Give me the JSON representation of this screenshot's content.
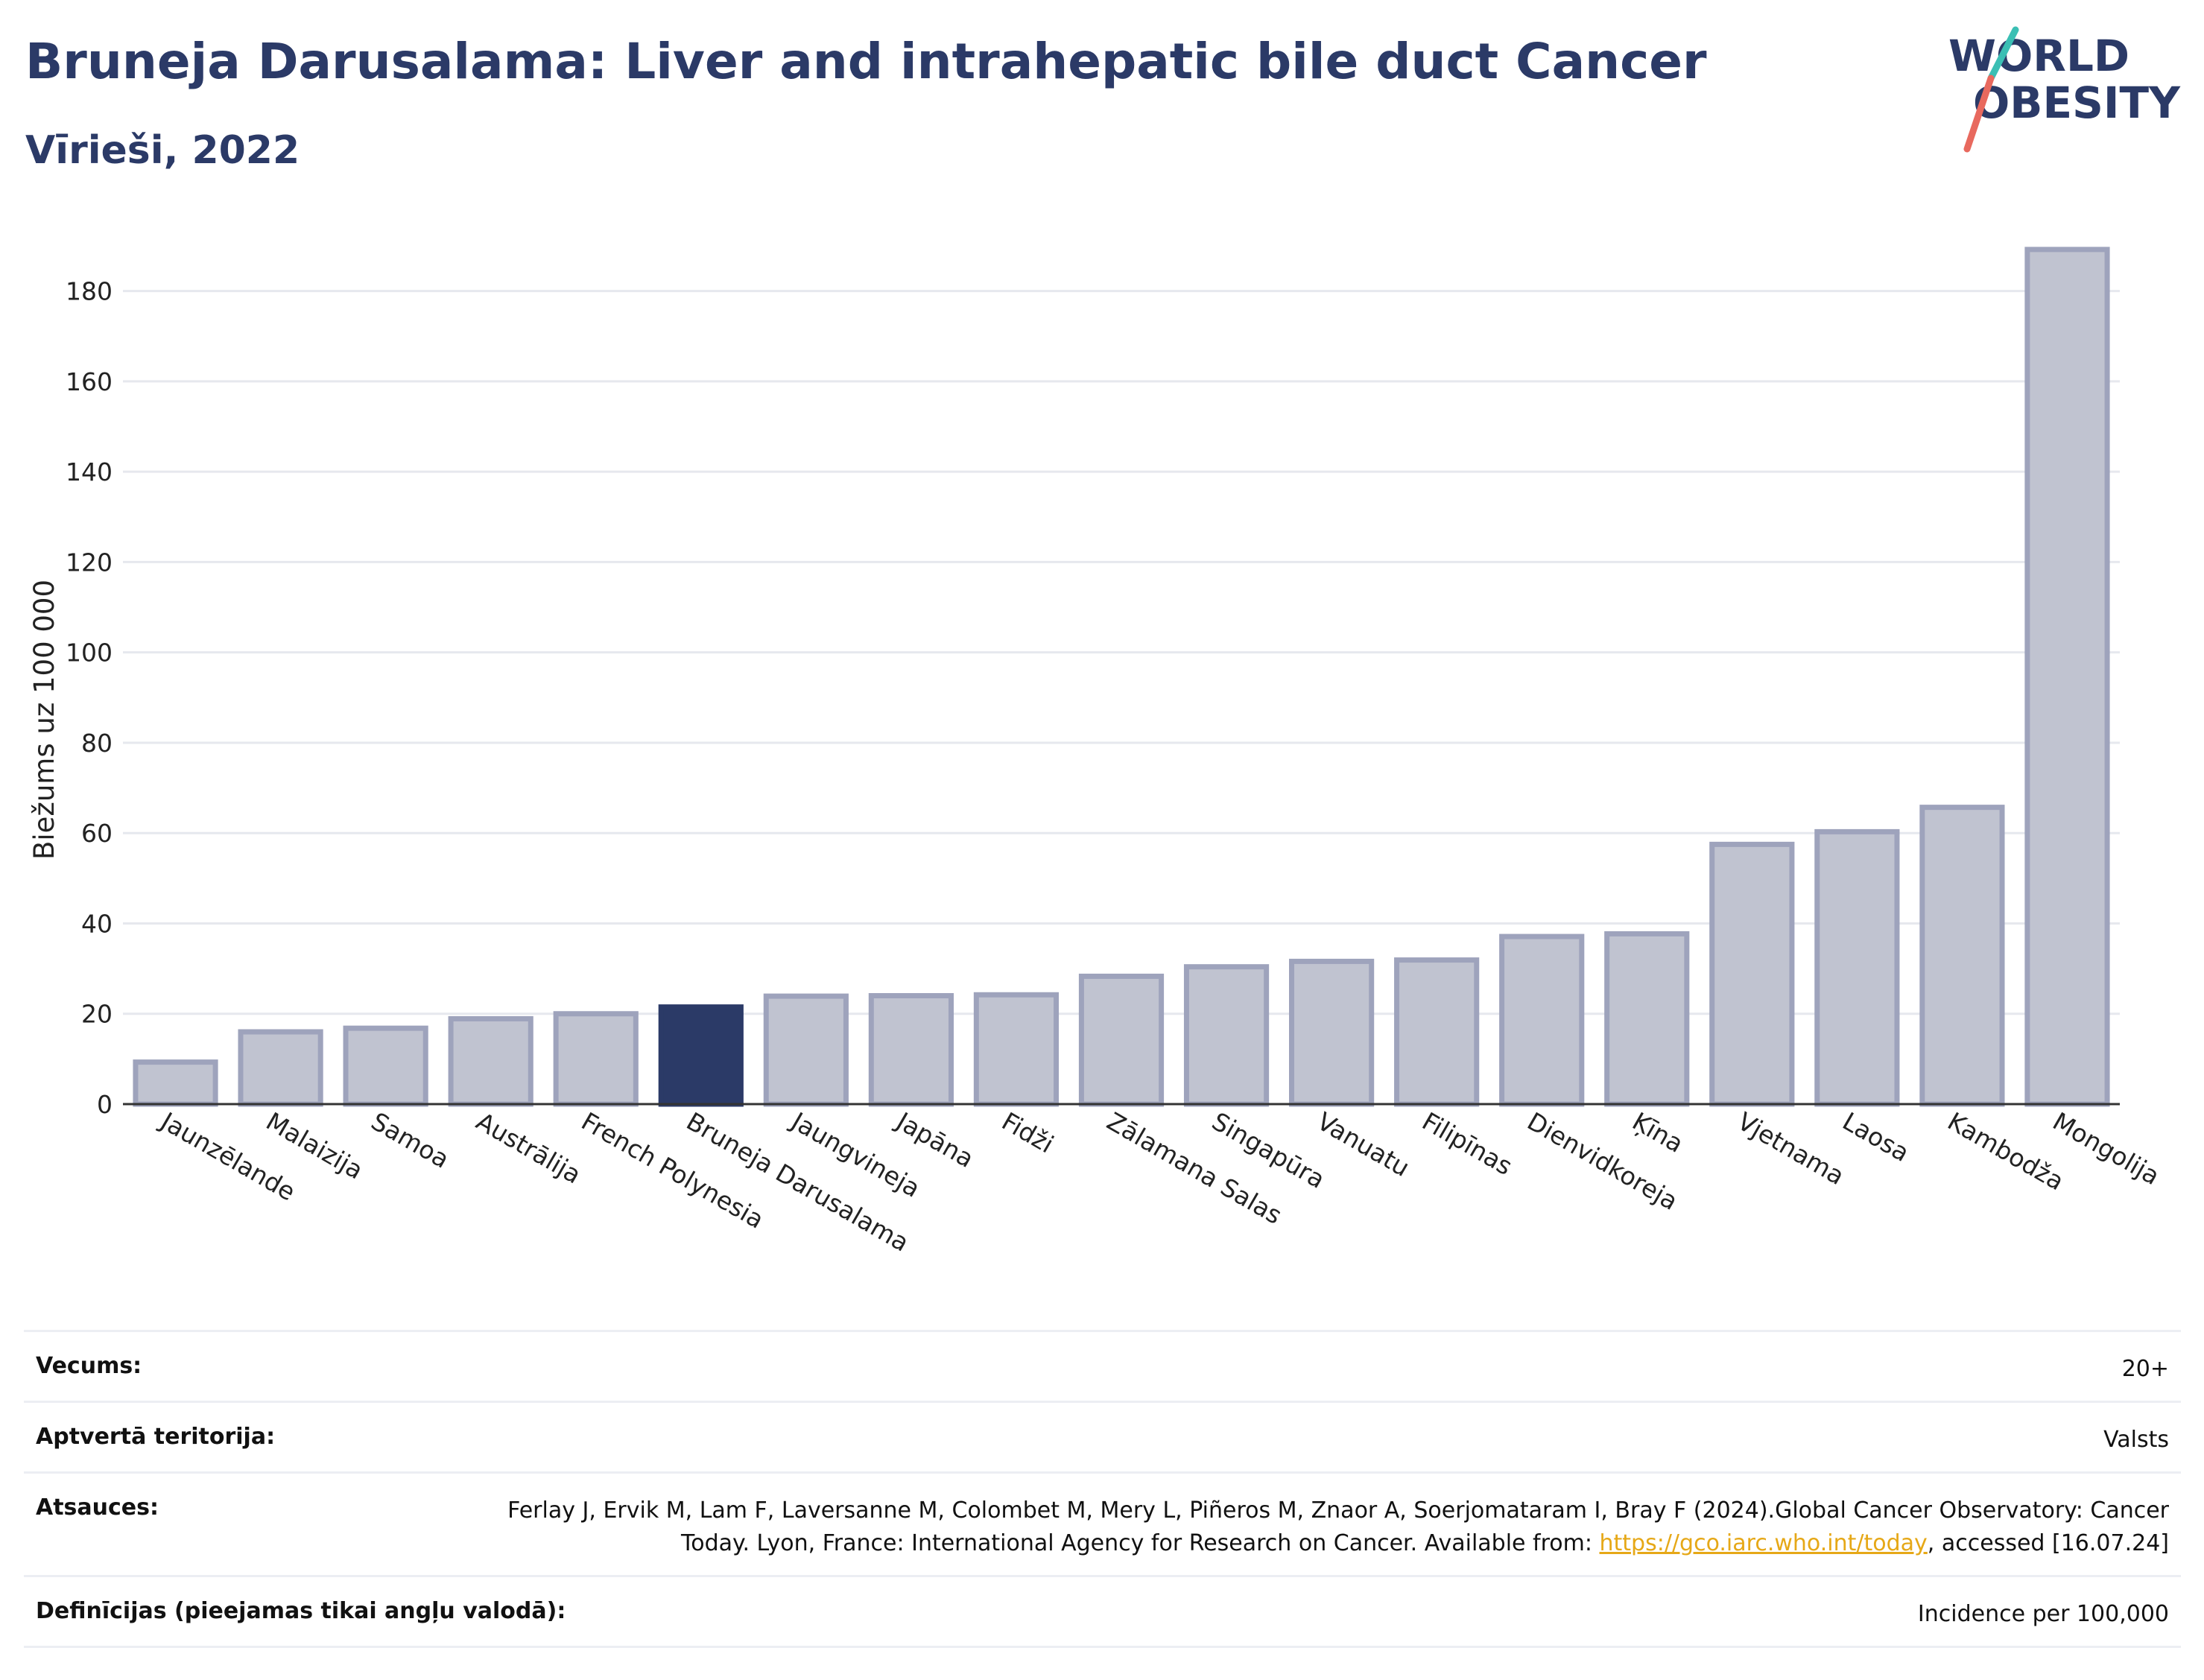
{
  "header": {
    "title": "Bruneja Darusalama: Liver and intrahepatic bile duct Cancer",
    "subtitle": "Vīrieši, 2022"
  },
  "logo": {
    "line1": "WORLD",
    "line2": "OBESITY"
  },
  "chart_data": {
    "type": "bar",
    "ylabel": "Biežums uz 100 000",
    "ylim": [
      0,
      190
    ],
    "yticks": [
      0,
      20,
      40,
      60,
      80,
      100,
      120,
      140,
      160,
      180
    ],
    "grid": true,
    "categories": [
      "Jaunzēlande",
      "Malaizija",
      "Samoa",
      "Austrālija",
      "French Polynesia",
      "Bruneja Darusalama",
      "Jaungvineja",
      "Japāna",
      "Fidži",
      "Zālamana Salas",
      "Singapūra",
      "Vanuatu",
      "Filipīnas",
      "Dienvidkoreja",
      "Ķīna",
      "Vjetnama",
      "Laosa",
      "Kambodža",
      "Mongolija"
    ],
    "values": [
      9.3,
      16.0,
      16.8,
      18.9,
      20.0,
      21.5,
      23.9,
      24.0,
      24.2,
      28.3,
      30.4,
      31.6,
      31.9,
      37.1,
      37.7,
      57.5,
      60.3,
      65.7,
      189.2
    ],
    "highlight": "Bruneja Darusalama",
    "colors": {
      "bar": "#c0c3d0",
      "bar_edge": "#9ea3bc",
      "highlight": "#2b3a67"
    }
  },
  "info": {
    "age_label": "Vecums:",
    "age_value": "20+",
    "territory_label": "Aptvertā teritorija:",
    "territory_value": "Valsts",
    "refs_label": "Atsauces:",
    "refs_text_1": "Ferlay J, Ervik M, Lam F, Laversanne M, Colombet M, Mery L, Piñeros M, Znaor A, Soerjomataram I, Bray F (2024).Global Cancer Observatory: Cancer Today. Lyon, France: International Agency for Research on Cancer. Available from: ",
    "refs_link": "https://gco.iarc.who.int/today",
    "refs_text_2": ", accessed [16.07.24]",
    "defs_label": "Definīcijas (pieejamas tikai angļu valodā):",
    "defs_value": "Incidence per 100,000"
  }
}
